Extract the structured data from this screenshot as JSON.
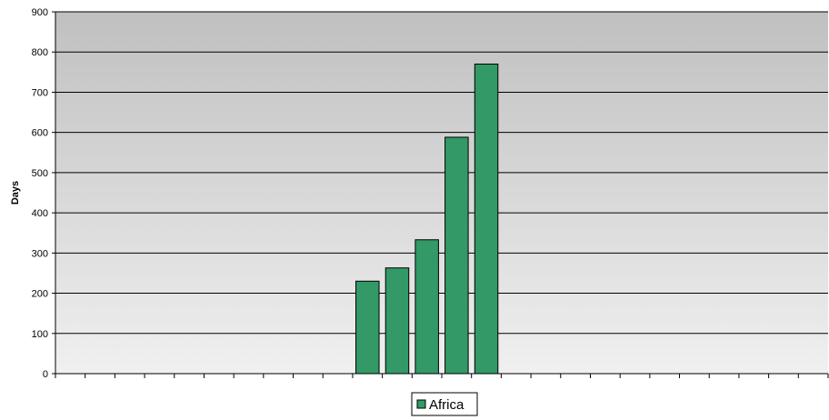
{
  "chart_data": {
    "type": "bar",
    "ylabel": "Days",
    "ylim": [
      0,
      900
    ],
    "yticks": [
      0,
      100,
      200,
      300,
      400,
      500,
      600,
      700,
      800,
      900
    ],
    "category_count": 26,
    "series": [
      {
        "name": "Africa",
        "color": "#339966",
        "values": [
          null,
          null,
          null,
          null,
          null,
          null,
          null,
          null,
          null,
          null,
          230,
          263,
          333,
          588,
          770,
          null,
          null,
          null,
          null,
          null,
          null,
          null,
          null,
          null,
          null,
          null
        ]
      }
    ],
    "grid": true,
    "legend_position": "bottom"
  }
}
